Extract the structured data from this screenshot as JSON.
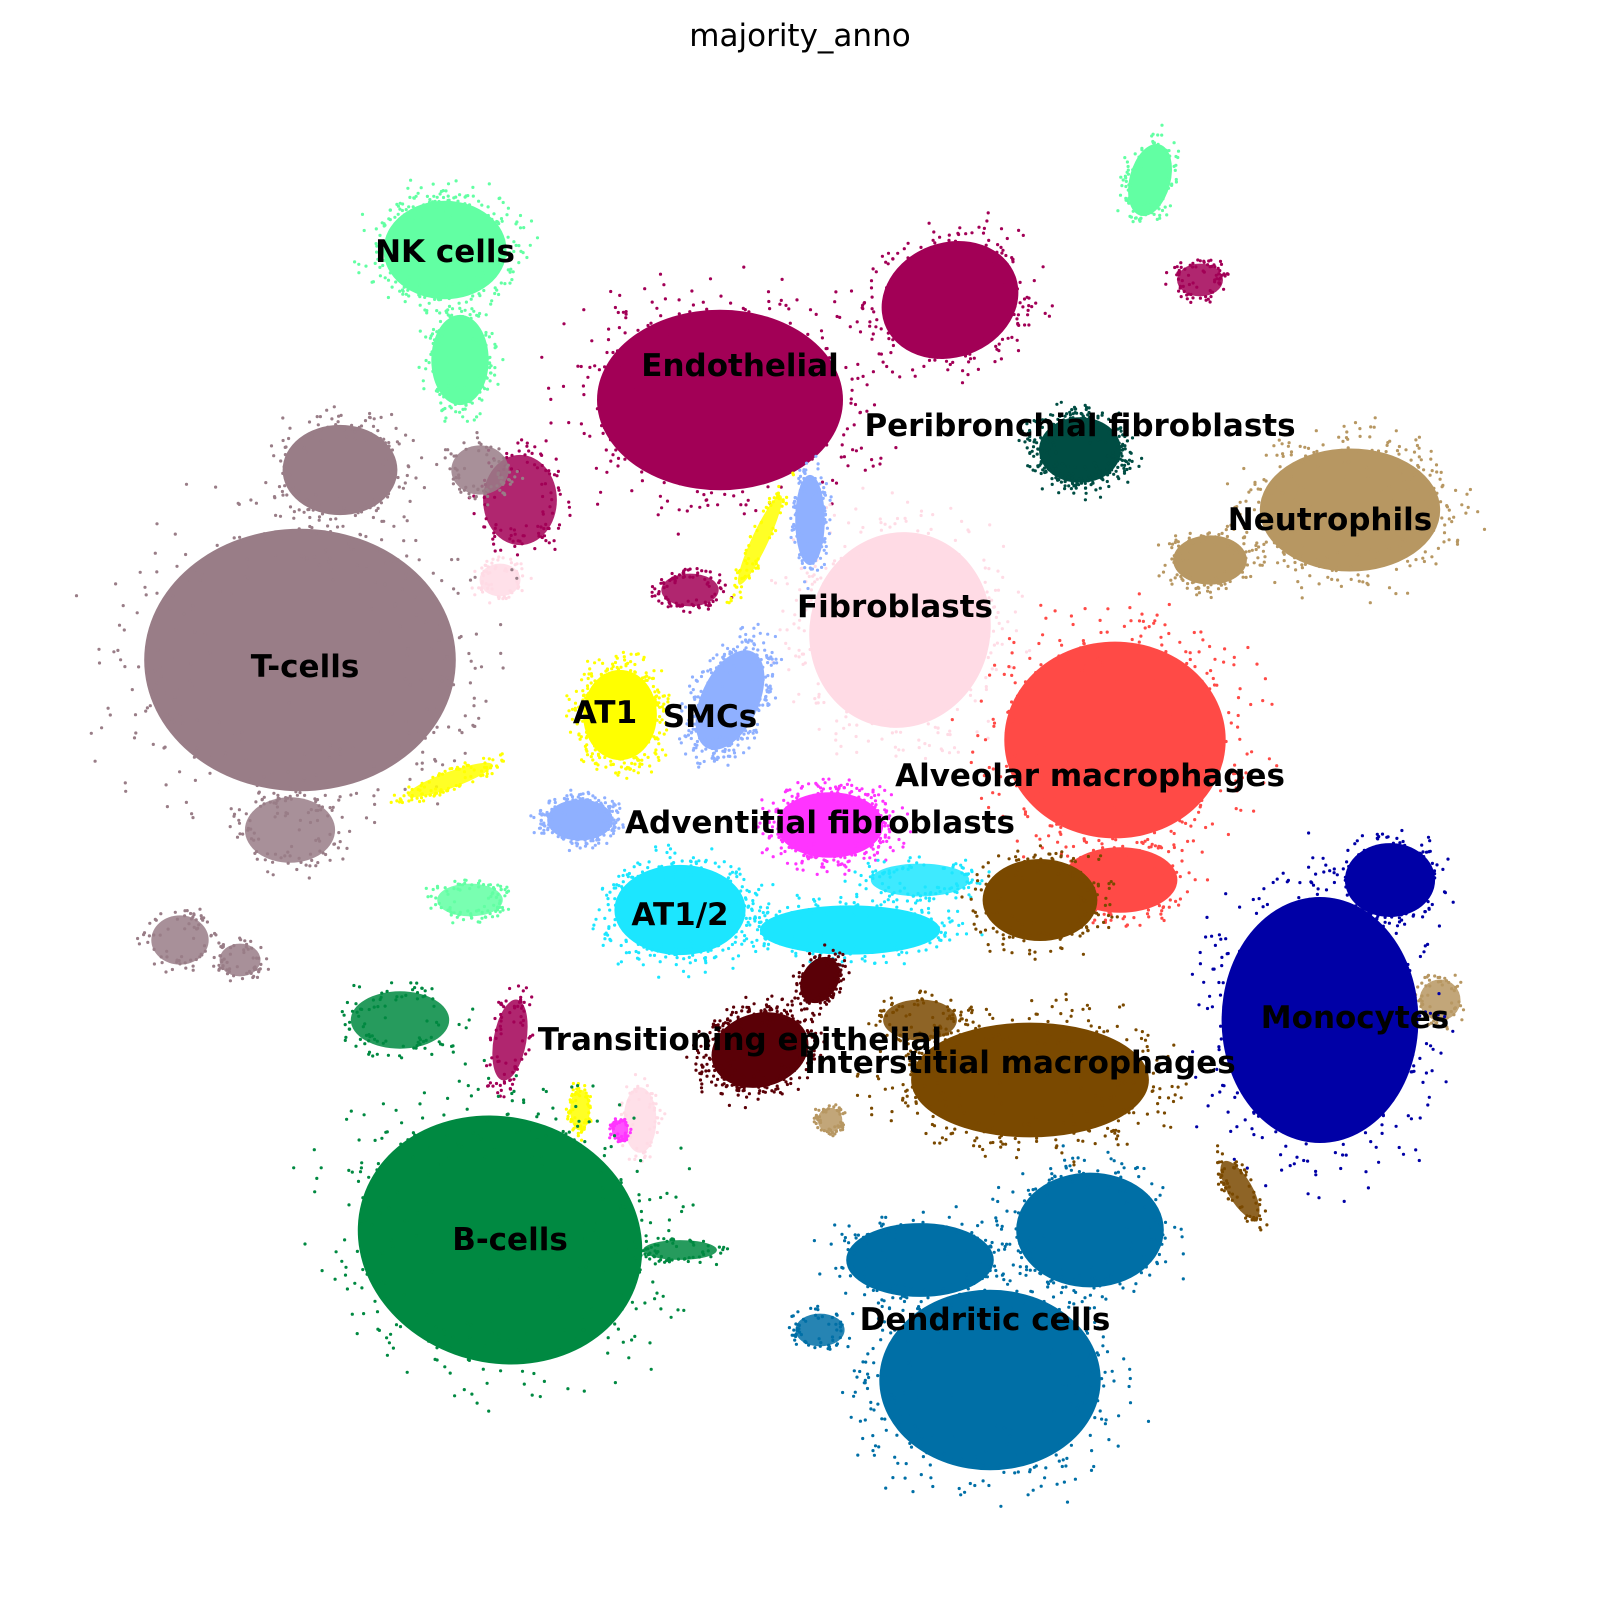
{
  "chart_data": {
    "type": "scatter",
    "title": "majority_anno",
    "xlabel": "",
    "ylabel": "",
    "axes_visible": false,
    "grid": false,
    "legend": "on data",
    "clusters": [
      {
        "name": "NK cells",
        "color": "#62FFA3"
      },
      {
        "name": "Endothelial",
        "color": "#A20056"
      },
      {
        "name": "Peribronchial fibroblasts",
        "color": "#004D43"
      },
      {
        "name": "Neutrophils",
        "color": "#B79762"
      },
      {
        "name": "Fibroblasts",
        "color": "#FFDBE5"
      },
      {
        "name": "T-cells",
        "color": "#997D87"
      },
      {
        "name": "AT1",
        "color": "#FFFF00"
      },
      {
        "name": "SMCs",
        "color": "#8FB0FF"
      },
      {
        "name": "Alveolar macrophages",
        "color": "#FF4A46"
      },
      {
        "name": "Adventitial fibroblasts",
        "color": "#FF34FF"
      },
      {
        "name": "AT1/2",
        "color": "#1CE6FF"
      },
      {
        "name": "Monocytes",
        "color": "#0000A6"
      },
      {
        "name": "Transitioning epithelial",
        "color": "#5A0007"
      },
      {
        "name": "Interstitial macrophages",
        "color": "#7A4900"
      },
      {
        "name": "B-cells",
        "color": "#008941"
      },
      {
        "name": "Dendritic cells",
        "color": "#006FA6"
      }
    ]
  }
}
